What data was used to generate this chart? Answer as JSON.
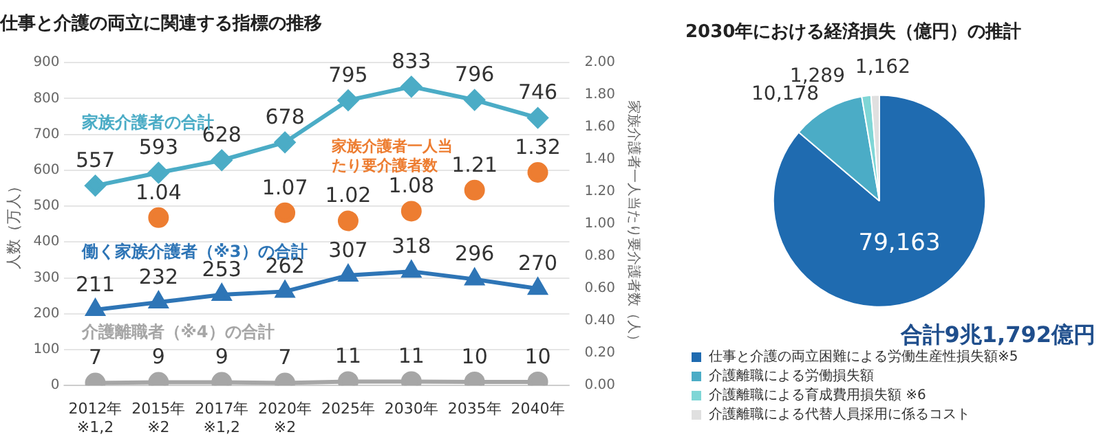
{
  "chart_data": [
    {
      "type": "line",
      "title": "仕事と介護の両立に関連する指標の推移",
      "ylabel": "人数（万人）",
      "y2label": "家族介護者一人当たり要介護者数（人）",
      "categories": [
        "2012年\n※1,2",
        "2015年\n※2",
        "2017年\n※1,2",
        "2020年\n※2",
        "2025年",
        "2030年",
        "2035年",
        "2040年"
      ],
      "series": [
        {
          "name": "家族介護者の合計",
          "color": "#4bacc6",
          "marker": "diamond",
          "values": [
            557,
            593,
            628,
            678,
            795,
            833,
            796,
            746
          ]
        },
        {
          "name": "働く家族介護者（※3）の合計",
          "color": "#2e75b6",
          "marker": "triangle",
          "values": [
            211,
            232,
            253,
            262,
            307,
            318,
            296,
            270
          ]
        },
        {
          "name": "介護離職者（※4）の合計",
          "color": "#a6a6a6",
          "marker": "circle",
          "values": [
            7,
            9,
            9,
            7,
            11,
            11,
            10,
            10
          ]
        },
        {
          "name": "家族介護者一人当たり要介護者数",
          "type": "scatter",
          "axis": "y2",
          "color": "#ed7d31",
          "marker": "circle",
          "values": [
            null,
            1.04,
            null,
            1.07,
            1.02,
            1.08,
            1.21,
            1.32
          ]
        }
      ],
      "ylim": [
        0,
        900
      ],
      "yticks": [
        0,
        100,
        200,
        300,
        400,
        500,
        600,
        700,
        800,
        900
      ],
      "y2lim": [
        0,
        2
      ],
      "y2ticks": [
        {
          "value": 0,
          "label": "0.00"
        },
        {
          "value": 0.2,
          "label": "0.20"
        },
        {
          "value": 0.4,
          "label": "0.40"
        },
        {
          "value": 0.6,
          "label": "0.60"
        },
        {
          "value": 0.8,
          "label": "0.80"
        },
        {
          "value": 1,
          "label": "1.00"
        },
        {
          "value": 1.2,
          "label": "1.20"
        },
        {
          "value": 1.4,
          "label": "1.40"
        },
        {
          "value": 1.6,
          "label": "1.60"
        },
        {
          "value": 1.8,
          "label": "1.80"
        },
        {
          "value": 2,
          "label": "2.00"
        }
      ],
      "grid": "y",
      "legend": false,
      "data_labels": true
    },
    {
      "type": "pie",
      "title": "2030年における経済損失（億円）の推計",
      "categories": [
        "仕事と介護の両立困難による労働生産性損失額※5",
        "介護離職による労働損失額",
        "介護離職による育成費用損失額 ※6",
        "介護離職による代替人員採用に係るコスト"
      ],
      "values": [
        79163,
        10178,
        1289,
        1162
      ],
      "colors": [
        "#1f6bb0",
        "#4bacc6",
        "#7fd6d6",
        "#e0e0e0"
      ],
      "value_labels": [
        "79,163",
        "10,178",
        "1,289",
        "1,162"
      ],
      "annotations": [
        "合計9兆1,792億円"
      ],
      "legend": "bottom left"
    }
  ]
}
